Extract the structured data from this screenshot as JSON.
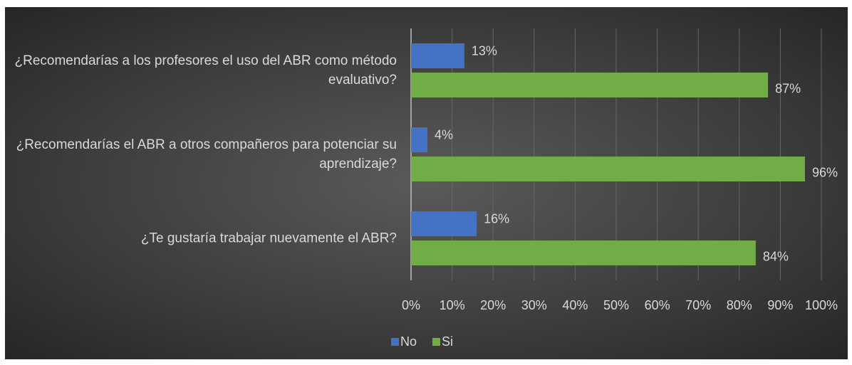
{
  "chart_data": {
    "type": "barh",
    "categories": [
      "¿Recomendarías a los profesores el uso del ABR como método evaluativo?",
      "¿Recomendarías el ABR a otros compañeros para potenciar su aprendizaje?",
      "¿Te gustaría trabajar nuevamente el ABR?"
    ],
    "series": [
      {
        "name": "No",
        "color": "#4472c4",
        "values": [
          13,
          4,
          16
        ],
        "value_labels": [
          "13%",
          "4%",
          "16%"
        ]
      },
      {
        "name": "Si",
        "color": "#70ad47",
        "values": [
          87,
          96,
          84
        ],
        "value_labels": [
          "87%",
          "96%",
          "84%"
        ]
      }
    ],
    "xlim": [
      0,
      100
    ],
    "xticks": [
      {
        "value": 0,
        "label": "0%"
      },
      {
        "value": 10,
        "label": "10%"
      },
      {
        "value": 20,
        "label": "20%"
      },
      {
        "value": 30,
        "label": "30%"
      },
      {
        "value": 40,
        "label": "40%"
      },
      {
        "value": 50,
        "label": "50%"
      },
      {
        "value": 60,
        "label": "60%"
      },
      {
        "value": 70,
        "label": "70%"
      },
      {
        "value": 80,
        "label": "80%"
      },
      {
        "value": 90,
        "label": "90%"
      },
      {
        "value": 100,
        "label": "100%"
      }
    ],
    "grid": true,
    "legend": "bottom"
  }
}
